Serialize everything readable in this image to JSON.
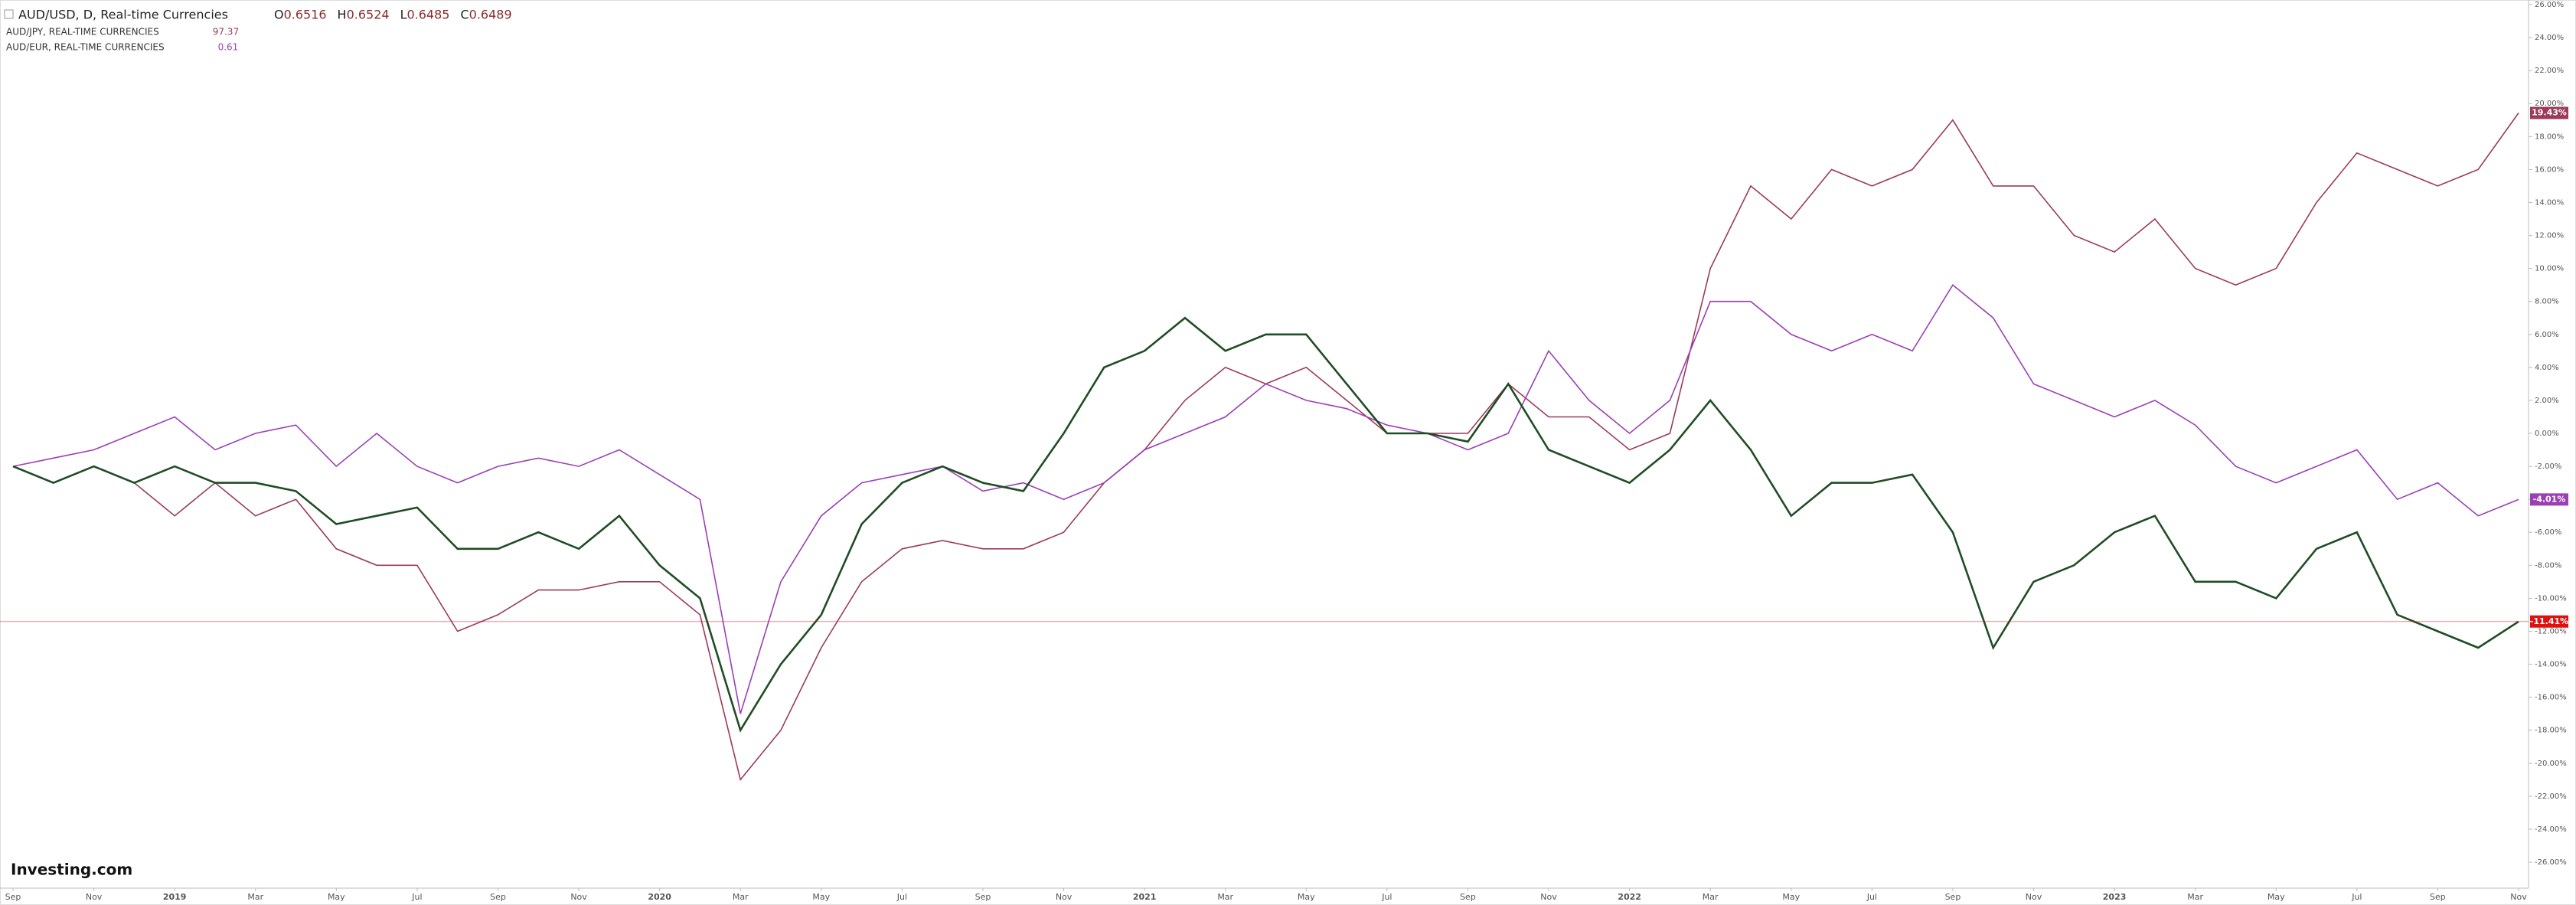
{
  "chart_data": {
    "type": "line",
    "title": "AUD/USD, D, Real-time Currencies",
    "ohlc": [
      {
        "label": "O",
        "value": 0.6516
      },
      {
        "label": "H",
        "value": 0.6524
      },
      {
        "label": "L",
        "value": 0.6485
      },
      {
        "label": "C",
        "value": 0.6489
      }
    ],
    "watermark": "Investing.com",
    "x": [
      "2018-09",
      "2018-10",
      "2018-11",
      "2018-12",
      "2019-01",
      "2019-02",
      "2019-03",
      "2019-04",
      "2019-05",
      "2019-06",
      "2019-07",
      "2019-08",
      "2019-09",
      "2019-10",
      "2019-11",
      "2019-12",
      "2020-01",
      "2020-02",
      "2020-03",
      "2020-04",
      "2020-05",
      "2020-06",
      "2020-07",
      "2020-08",
      "2020-09",
      "2020-10",
      "2020-11",
      "2020-12",
      "2021-01",
      "2021-02",
      "2021-03",
      "2021-04",
      "2021-05",
      "2021-06",
      "2021-07",
      "2021-08",
      "2021-09",
      "2021-10",
      "2021-11",
      "2021-12",
      "2022-01",
      "2022-02",
      "2022-03",
      "2022-04",
      "2022-05",
      "2022-06",
      "2022-07",
      "2022-08",
      "2022-09",
      "2022-10",
      "2022-11",
      "2022-12",
      "2023-01",
      "2023-02",
      "2023-03",
      "2023-04",
      "2023-05",
      "2023-06",
      "2023-07",
      "2023-08",
      "2023-09",
      "2023-10",
      "2023-11"
    ],
    "series": [
      {
        "name": "AUD/JPY, REAL-TIME CURRENCIES",
        "legend_value": 97.37,
        "color": "#9c3a5a",
        "values": [
          -2,
          -3,
          -2,
          -3,
          -5,
          -3,
          -5,
          -4,
          -7,
          -8,
          -8,
          -12,
          -11,
          -9.5,
          -9.5,
          -9,
          -9,
          -11,
          -21,
          -18,
          -13,
          -9,
          -7,
          -6.5,
          -7,
          -7,
          -6,
          -3,
          -1,
          2,
          4,
          3,
          4,
          2,
          0,
          0,
          0,
          3,
          1,
          1,
          -1,
          0,
          10,
          15,
          13,
          16,
          15,
          16,
          19,
          15,
          15,
          12,
          11,
          13,
          10,
          9,
          10,
          14,
          17,
          16,
          15,
          16,
          19.43
        ],
        "value_labels": [
          null,
          null,
          null,
          null,
          null,
          null,
          null,
          null,
          null,
          null,
          null,
          null,
          null,
          null,
          null,
          null,
          null,
          null,
          null,
          null,
          null,
          null,
          null,
          null,
          null,
          null,
          null,
          null,
          null,
          null,
          null,
          null,
          null,
          null,
          null,
          null,
          null,
          null,
          null,
          null,
          null,
          null,
          null,
          null,
          null,
          null,
          null,
          null,
          null,
          null,
          null,
          null,
          null,
          null,
          null,
          null,
          null,
          null,
          null,
          null,
          null,
          null,
          "19.43%"
        ]
      },
      {
        "name": "AUD/EUR, REAL-TIME CURRENCIES",
        "legend_value": 0.61,
        "color": "#9b3fb5",
        "values": [
          -2,
          -1.5,
          -1,
          0,
          1,
          -1,
          0,
          0.5,
          -2,
          0,
          -2,
          -3,
          -2,
          -1.5,
          -2,
          -1,
          -2.5,
          -4,
          -17,
          -9,
          -5,
          -3,
          -2.5,
          -2,
          -3.5,
          -3,
          -4,
          -3,
          -1,
          0,
          1,
          3,
          2,
          1.5,
          0.5,
          0,
          -1,
          0,
          5,
          2,
          0,
          2,
          8,
          8,
          6,
          5,
          6,
          5,
          9,
          7,
          3,
          2,
          1,
          2,
          0.5,
          -2,
          -3,
          -2,
          -1,
          -4,
          -3,
          -5,
          -4.01
        ],
        "value_labels": [
          null,
          null,
          null,
          null,
          null,
          null,
          null,
          null,
          null,
          null,
          null,
          null,
          null,
          null,
          null,
          null,
          null,
          null,
          null,
          null,
          null,
          null,
          null,
          null,
          null,
          null,
          null,
          null,
          null,
          null,
          null,
          null,
          null,
          null,
          null,
          null,
          null,
          null,
          null,
          null,
          null,
          null,
          null,
          null,
          null,
          null,
          null,
          null,
          null,
          null,
          null,
          null,
          null,
          null,
          null,
          null,
          null,
          null,
          null,
          null,
          null,
          null,
          "-4.01%"
        ]
      },
      {
        "name": "AUD/USD",
        "color": "#1f4d24",
        "tag_color": "#e01010",
        "values": [
          -2,
          -3,
          -2,
          -3,
          -2,
          -3,
          -3,
          -3.5,
          -5.5,
          -5,
          -4.5,
          -7,
          -7,
          -6,
          -7,
          -5,
          -8,
          -10,
          -18,
          -14,
          -11,
          -5.5,
          -3,
          -2,
          -3,
          -3.5,
          0,
          4,
          5,
          7,
          5,
          6,
          6,
          3,
          0,
          0,
          -0.5,
          3,
          -1,
          -2,
          -3,
          -1,
          2,
          -1,
          -5,
          -3,
          -3,
          -2.5,
          -6,
          -13,
          -9,
          -8,
          -6,
          -5,
          -9,
          -9,
          -10,
          -7,
          -6,
          -11,
          -12,
          -13,
          -11.41
        ],
        "value_labels": [
          null,
          null,
          null,
          null,
          null,
          null,
          null,
          null,
          null,
          null,
          null,
          null,
          null,
          null,
          null,
          null,
          null,
          null,
          null,
          null,
          null,
          null,
          null,
          null,
          null,
          null,
          null,
          null,
          null,
          null,
          null,
          null,
          null,
          null,
          null,
          null,
          null,
          null,
          null,
          null,
          null,
          null,
          null,
          null,
          null,
          null,
          null,
          null,
          null,
          null,
          null,
          null,
          null,
          null,
          null,
          null,
          null,
          null,
          null,
          null,
          null,
          null,
          "-11.41%"
        ]
      }
    ],
    "xlim": [
      "2018-09",
      "2023-11"
    ],
    "xticks": [
      {
        "value": "2018-09",
        "label": "Sep"
      },
      {
        "value": "2018-11",
        "label": "Nov"
      },
      {
        "value": "2019-01",
        "label": "2019"
      },
      {
        "value": "2019-03",
        "label": "Mar"
      },
      {
        "value": "2019-05",
        "label": "May"
      },
      {
        "value": "2019-07",
        "label": "Jul"
      },
      {
        "value": "2019-09",
        "label": "Sep"
      },
      {
        "value": "2019-11",
        "label": "Nov"
      },
      {
        "value": "2020-01",
        "label": "2020"
      },
      {
        "value": "2020-03",
        "label": "Mar"
      },
      {
        "value": "2020-05",
        "label": "May"
      },
      {
        "value": "2020-07",
        "label": "Jul"
      },
      {
        "value": "2020-09",
        "label": "Sep"
      },
      {
        "value": "2020-11",
        "label": "Nov"
      },
      {
        "value": "2021-01",
        "label": "2021"
      },
      {
        "value": "2021-03",
        "label": "Mar"
      },
      {
        "value": "2021-05",
        "label": "May"
      },
      {
        "value": "2021-07",
        "label": "Jul"
      },
      {
        "value": "2021-09",
        "label": "Sep"
      },
      {
        "value": "2021-11",
        "label": "Nov"
      },
      {
        "value": "2022-01",
        "label": "2022"
      },
      {
        "value": "2022-03",
        "label": "Mar"
      },
      {
        "value": "2022-05",
        "label": "May"
      },
      {
        "value": "2022-07",
        "label": "Jul"
      },
      {
        "value": "2022-09",
        "label": "Sep"
      },
      {
        "value": "2022-11",
        "label": "Nov"
      },
      {
        "value": "2023-01",
        "label": "2023"
      },
      {
        "value": "2023-03",
        "label": "Mar"
      },
      {
        "value": "2023-05",
        "label": "May"
      },
      {
        "value": "2023-07",
        "label": "Jul"
      },
      {
        "value": "2023-09",
        "label": "Sep"
      },
      {
        "value": "2023-11",
        "label": "Nov"
      }
    ],
    "ylim": [
      -26,
      26
    ],
    "yticks": [
      {
        "value": 26,
        "label": "26.00%"
      },
      {
        "value": 24,
        "label": "24.00%"
      },
      {
        "value": 22,
        "label": "22.00%"
      },
      {
        "value": 20,
        "label": "20.00%"
      },
      {
        "value": 18,
        "label": "18.00%"
      },
      {
        "value": 16,
        "label": "16.00%"
      },
      {
        "value": 14,
        "label": "14.00%"
      },
      {
        "value": 12,
        "label": "12.00%"
      },
      {
        "value": 10,
        "label": "10.00%"
      },
      {
        "value": 8,
        "label": "8.00%"
      },
      {
        "value": 6,
        "label": "6.00%"
      },
      {
        "value": 4,
        "label": "4.00%"
      },
      {
        "value": 2,
        "label": "2.00%"
      },
      {
        "value": 0,
        "label": "0.00%"
      },
      {
        "value": -2,
        "label": "-2.00%"
      },
      {
        "value": -4,
        "label": "-4.00%"
      },
      {
        "value": -6,
        "label": "-6.00%"
      },
      {
        "value": -8,
        "label": "-8.00%"
      },
      {
        "value": -10,
        "label": "-10.00%"
      },
      {
        "value": -12,
        "label": "-12.00%"
      },
      {
        "value": -14,
        "label": "-14.00%"
      },
      {
        "value": -16,
        "label": "-16.00%"
      },
      {
        "value": -18,
        "label": "-18.00%"
      },
      {
        "value": -20,
        "label": "-20.00%"
      },
      {
        "value": -22,
        "label": "-22.00%"
      },
      {
        "value": -24,
        "label": "-24.00%"
      },
      {
        "value": -26,
        "label": "-26.00%"
      }
    ],
    "y_axis_side": "right",
    "grid": false
  }
}
